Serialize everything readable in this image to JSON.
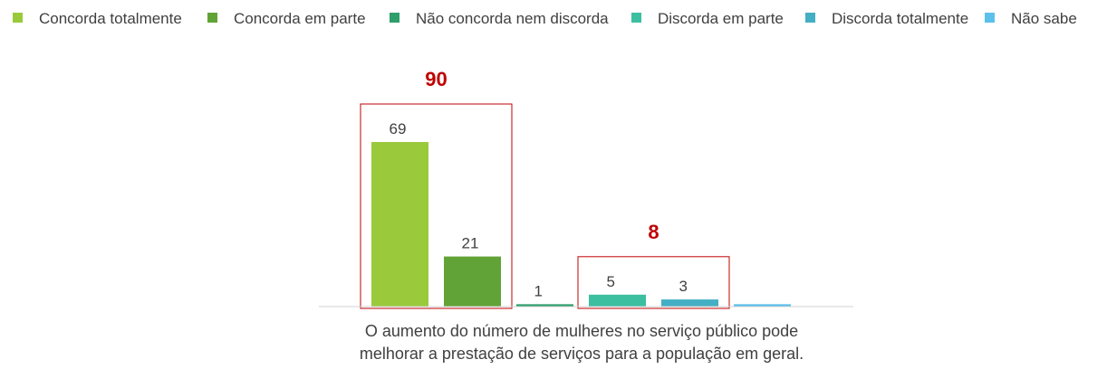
{
  "chart_data": {
    "type": "bar",
    "category_lines": [
      "O aumento do número de mulheres no serviço público pode",
      "melhorar a prestação de serviços para a população em geral."
    ],
    "series": [
      {
        "name": "Concorda totalmente",
        "value": 69,
        "label": "69",
        "color": "#9ACA3C"
      },
      {
        "name": "Concorda em parte",
        "value": 21,
        "label": "21",
        "color": "#62A337"
      },
      {
        "name": "Não concorda nem discorda",
        "value": 1,
        "label": "1",
        "color": "#2E9E6B"
      },
      {
        "name": "Discorda em parte",
        "value": 5,
        "label": "5",
        "color": "#3CBFA0"
      },
      {
        "name": "Discorda totalmente",
        "value": 3,
        "label": "3",
        "color": "#44AFC4"
      },
      {
        "name": "Não sabe",
        "value": 1,
        "label": "",
        "color": "#5BC0EB"
      }
    ],
    "groups": [
      {
        "total": "90",
        "series_indices": [
          0,
          1
        ],
        "box_color": "#c00000"
      },
      {
        "total": "8",
        "series_indices": [
          3,
          4
        ],
        "box_color": "#c00000"
      }
    ],
    "legend_position": "top",
    "ylim": [
      0,
      69
    ],
    "grid": false
  }
}
